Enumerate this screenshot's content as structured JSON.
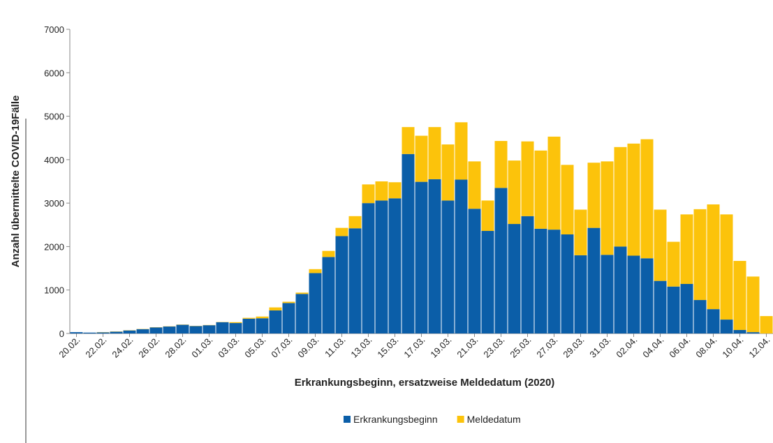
{
  "chart_data": {
    "type": "stacked_bar",
    "xlabel": "Erkrankungsbeginn, ersatzweise Meldedatum (2020)",
    "ylabel": "Anzahl übermittelte COVID-19Fälle",
    "categories": [
      "20.02.",
      null,
      "22.02.",
      null,
      "24.02.",
      null,
      "26.02.",
      null,
      "28.02.",
      null,
      "01.03.",
      null,
      "03.03.",
      null,
      "05.03.",
      null,
      "07.03.",
      null,
      "09.03.",
      null,
      "11.03.",
      null,
      "13.03.",
      null,
      "15.03.",
      null,
      "17.03.",
      null,
      "19.03.",
      null,
      "21.03.",
      null,
      "23.03.",
      null,
      "25.03.",
      null,
      "27.03.",
      null,
      "29.03.",
      null,
      "31.03.",
      null,
      "02.04.",
      null,
      "04.04.",
      null,
      "06.04.",
      null,
      "08.04.",
      null,
      "10.04.",
      null,
      "12.04."
    ],
    "series": [
      {
        "name": "Erkrankungsbeginn",
        "color": "#0b5ea8",
        "values": [
          30,
          20,
          25,
          40,
          70,
          100,
          140,
          160,
          200,
          170,
          190,
          260,
          240,
          340,
          350,
          530,
          700,
          910,
          1390,
          1760,
          2240,
          2420,
          3000,
          3060,
          3110,
          4130,
          3490,
          3550,
          3060,
          3540,
          2870,
          2360,
          3350,
          2520,
          2700,
          2410,
          2390,
          2280,
          1800,
          2430,
          1810,
          2000,
          1790,
          1730,
          1210,
          1080,
          1140,
          770,
          560,
          320,
          80,
          30,
          0
        ]
      },
      {
        "name": "Meldedatum",
        "color": "#fcc30b",
        "values": [
          0,
          0,
          5,
          5,
          5,
          5,
          5,
          5,
          5,
          5,
          5,
          5,
          20,
          20,
          40,
          70,
          30,
          30,
          90,
          140,
          190,
          280,
          430,
          440,
          370,
          620,
          1060,
          1200,
          1290,
          1320,
          1090,
          700,
          1080,
          1460,
          1720,
          1800,
          2140,
          1600,
          1050,
          1500,
          2150,
          2290,
          2580,
          2740,
          1640,
          1030,
          1600,
          2090,
          2410,
          2420,
          1590,
          1280,
          400
        ]
      }
    ],
    "ylim": [
      0,
      7000
    ],
    "yticks": [
      0,
      1000,
      2000,
      3000,
      4000,
      5000,
      6000,
      7000
    ],
    "legend": "bottom"
  }
}
